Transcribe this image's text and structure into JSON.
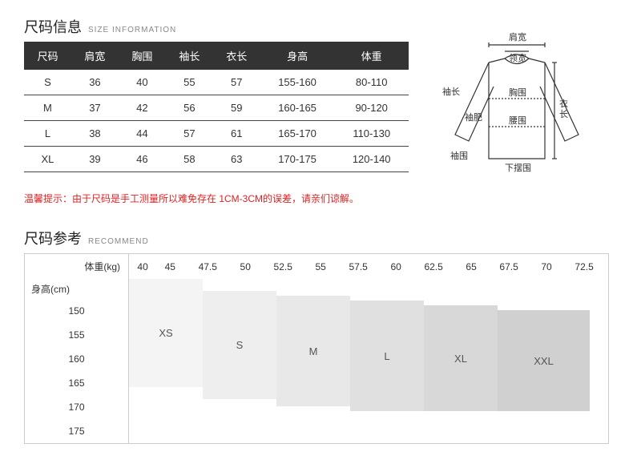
{
  "size_info": {
    "title_cn": "尺码信息",
    "title_en": "SIZE INFORMATION",
    "columns": [
      "尺码",
      "肩宽",
      "胸围",
      "袖长",
      "衣长",
      "身高",
      "体重"
    ],
    "rows": [
      [
        "S",
        "36",
        "40",
        "55",
        "57",
        "155-160",
        "80-110"
      ],
      [
        "M",
        "37",
        "42",
        "56",
        "59",
        "160-165",
        "90-120"
      ],
      [
        "L",
        "38",
        "44",
        "57",
        "61",
        "165-170",
        "110-130"
      ],
      [
        "XL",
        "39",
        "46",
        "58",
        "63",
        "170-175",
        "120-140"
      ]
    ]
  },
  "notice": "温馨提示：由于尺码是手工测量所以难免存在 1CM-3CM的误差，请亲们谅解。",
  "diagram_labels": {
    "shoulder": "肩宽",
    "collar": "领宽",
    "sleeve_len": "袖长",
    "sleeve_fat": "袖肥",
    "chest": "胸围",
    "waist": "腰围",
    "body_len": "衣长",
    "hem": "下摆围",
    "cuff": "袖围"
  },
  "recommend": {
    "title_cn": "尺码参考",
    "title_en": "RECOMMEND",
    "weight_label": "体重(kg)",
    "height_label": "身高(cm)",
    "weights": [
      "40",
      "45",
      "47.5",
      "50",
      "52.5",
      "55",
      "57.5",
      "60",
      "62.5",
      "65",
      "67.5",
      "70",
      "72.5"
    ],
    "heights": [
      "150",
      "155",
      "160",
      "165",
      "170",
      "175"
    ],
    "blocks": {
      "xs": {
        "label": "XS"
      },
      "s": {
        "label": "S"
      },
      "m": {
        "label": "M"
      },
      "l": {
        "label": "L"
      },
      "xl": {
        "label": "XL"
      },
      "xxl": {
        "label": "XXL"
      }
    }
  },
  "colors": {
    "header_bg": "#333333",
    "row_border": "#444444",
    "notice_text": "#dd2222",
    "cell_border": "#cccccc"
  }
}
